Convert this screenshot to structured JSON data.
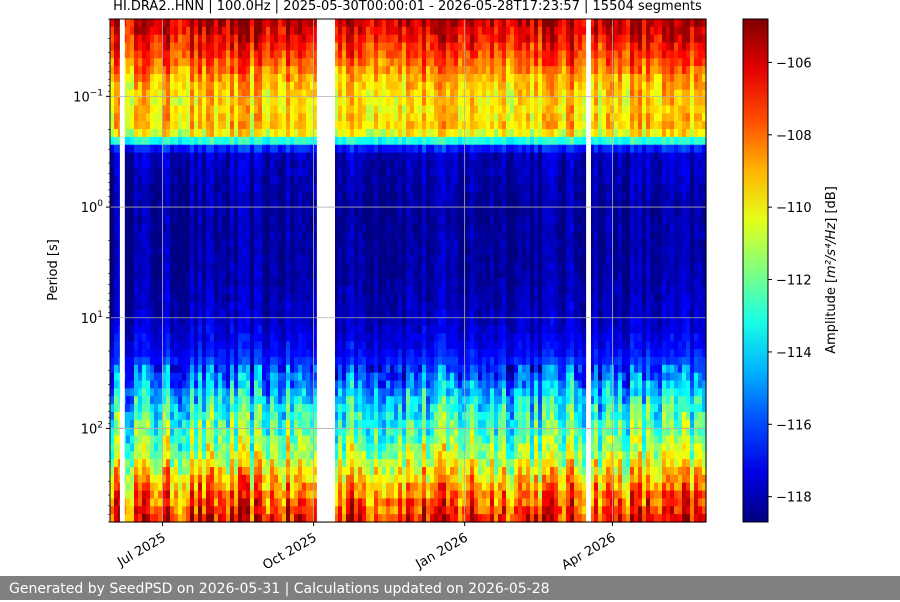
{
  "chart_data": {
    "type": "heatmap",
    "title": "HI.DRA2..HNN | 100.0Hz | 2025-05-30T00:00:01 - 2026-05-28T17:23:57 | 15504 segments",
    "ylabel": "Period [s]",
    "yscale": "log",
    "yaxis_inverted": true,
    "ylim": [
      0.02,
      700
    ],
    "y_ticks": [
      {
        "value": 0.1,
        "base": "10",
        "exp": "−1"
      },
      {
        "value": 1,
        "base": "10",
        "exp": "0"
      },
      {
        "value": 10,
        "base": "10",
        "exp": "1"
      },
      {
        "value": 100,
        "base": "10",
        "exp": "2"
      }
    ],
    "x_range": [
      "2025-05-30",
      "2026-05-28"
    ],
    "x_ticks": [
      {
        "date": "2025-07-01",
        "label": "Jul 2025"
      },
      {
        "date": "2025-10-01",
        "label": "Oct 2025"
      },
      {
        "date": "2026-01-01",
        "label": "Jan 2026"
      },
      {
        "date": "2026-04-01",
        "label": "Apr 2026"
      }
    ],
    "data_gaps": [
      [
        "2025-06-05",
        "2025-06-08"
      ],
      [
        "2025-10-03",
        "2025-10-14"
      ],
      [
        "2026-03-16",
        "2026-03-19"
      ]
    ],
    "grid": true,
    "colormap": "jet",
    "colorbar": {
      "label": "Amplitude [m²/s⁴/Hz] [dB]",
      "label_main": "Amplitude [",
      "label_unit": "m²/s⁴/Hz",
      "label_tail": "] [dB]",
      "range": [
        -118.7,
        -104.8
      ],
      "ticks": [
        -106,
        -108,
        -110,
        -112,
        -114,
        -116,
        -118
      ],
      "tick_labels": [
        "−106",
        "−108",
        "−110",
        "−112",
        "−114",
        "−116",
        "−118"
      ]
    },
    "amplitude_profile": [
      {
        "period": 0.02,
        "db": -105.5
      },
      {
        "period": 0.03,
        "db": -106.5
      },
      {
        "period": 0.045,
        "db": -107.5
      },
      {
        "period": 0.07,
        "db": -109
      },
      {
        "period": 0.12,
        "db": -109.7
      },
      {
        "period": 0.18,
        "db": -109.3
      },
      {
        "period": 0.23,
        "db": -110.5
      },
      {
        "period": 0.27,
        "db": -115
      },
      {
        "period": 0.32,
        "db": -117.8
      },
      {
        "period": 1,
        "db": -118.3
      },
      {
        "period": 4,
        "db": -118.2
      },
      {
        "period": 10,
        "db": -117.8
      },
      {
        "period": 20,
        "db": -117
      },
      {
        "period": 35,
        "db": -115.5
      },
      {
        "period": 60,
        "db": -113.5
      },
      {
        "period": 100,
        "db": -112.5
      },
      {
        "period": 180,
        "db": -111
      },
      {
        "period": 300,
        "db": -109
      },
      {
        "period": 500,
        "db": -107.5
      },
      {
        "period": 700,
        "db": -106.5
      }
    ]
  },
  "footer": {
    "text": "Generated by SeedPSD on 2026-05-31 | Calculations updated on 2026-05-28"
  }
}
